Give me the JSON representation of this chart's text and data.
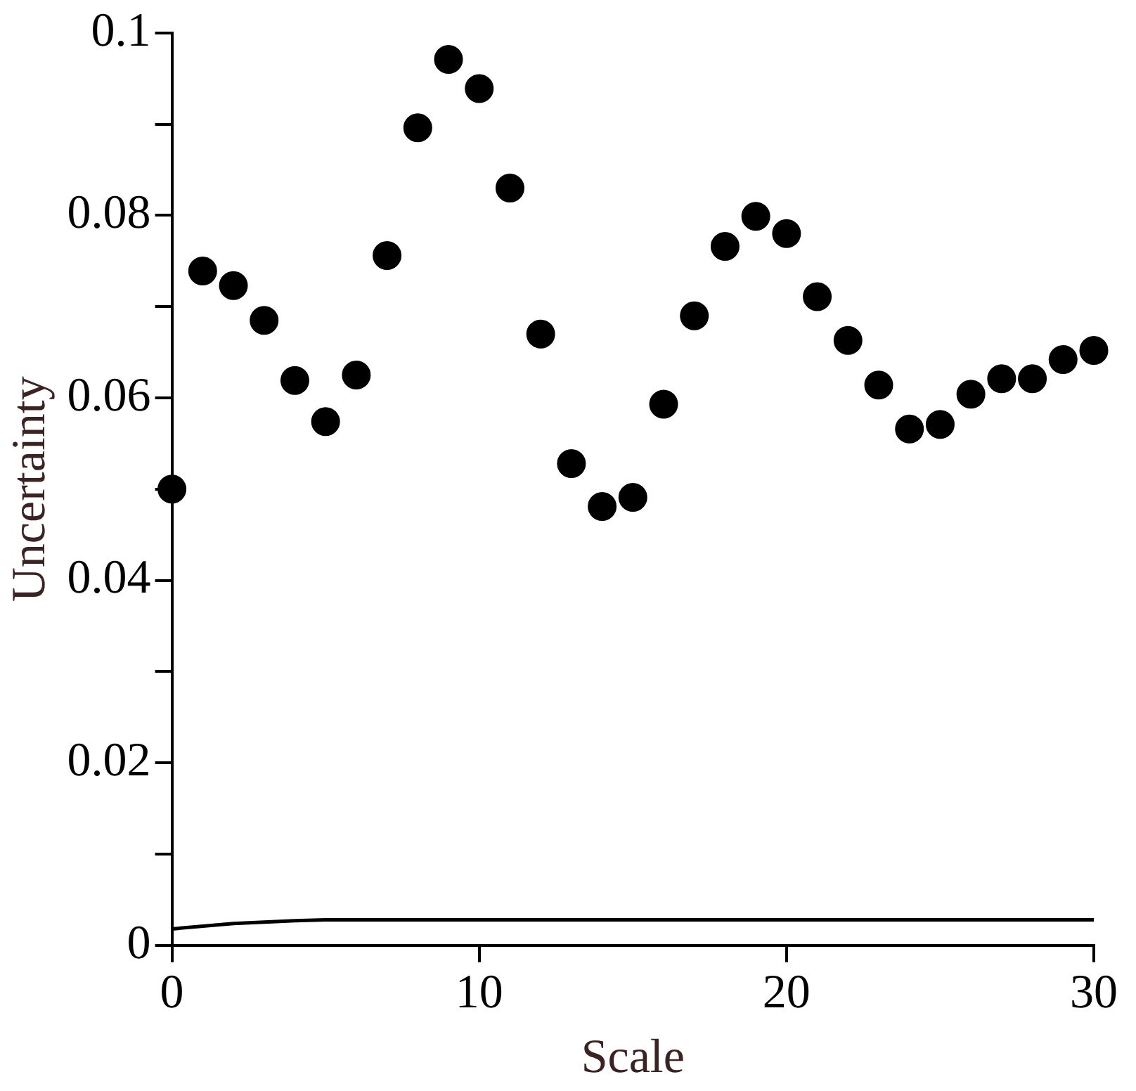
{
  "chart_data": {
    "type": "scatter",
    "xlabel": "Scale",
    "ylabel": "Uncertainty",
    "xlim": [
      0,
      30
    ],
    "ylim": [
      0,
      0.1
    ],
    "xticks": [
      0,
      10,
      20,
      30
    ],
    "yticks": [
      0,
      {
        "value": 0.01,
        "label": null
      },
      0.02,
      {
        "value": 0.03,
        "label": null
      },
      0.04,
      {
        "value": 0.05,
        "label": null
      },
      0.06,
      {
        "value": 0.07,
        "label": null
      },
      0.08,
      {
        "value": 0.09,
        "label": null
      },
      0.1
    ],
    "marker": "circle",
    "series": [
      {
        "color": "#000000",
        "x": [
          0,
          1,
          2,
          3,
          4,
          5,
          6,
          7,
          8,
          9,
          10,
          11,
          12,
          13,
          14,
          15,
          16,
          17,
          18,
          19,
          20,
          21,
          22,
          23,
          24,
          25,
          26,
          27,
          28,
          29,
          30
        ],
        "values": [
          0.05,
          0.0739,
          0.0723,
          0.0685,
          0.0619,
          0.0574,
          0.0625,
          0.0756,
          0.0896,
          0.0971,
          0.0939,
          0.083,
          0.067,
          0.0528,
          0.0481,
          0.0491,
          0.0593,
          0.069,
          0.0766,
          0.0799,
          0.078,
          0.0711,
          0.0663,
          0.0614,
          0.0566,
          0.0571,
          0.0604,
          0.0621,
          0.0621,
          0.0642,
          0.0652
        ]
      },
      {
        "type": "line",
        "color": "#000000",
        "marker": "none",
        "line_style": "solid",
        "x": [
          0,
          2,
          4,
          5,
          30
        ],
        "values": [
          0.0018,
          0.0024,
          0.0027,
          0.0028,
          0.0028
        ]
      }
    ]
  }
}
